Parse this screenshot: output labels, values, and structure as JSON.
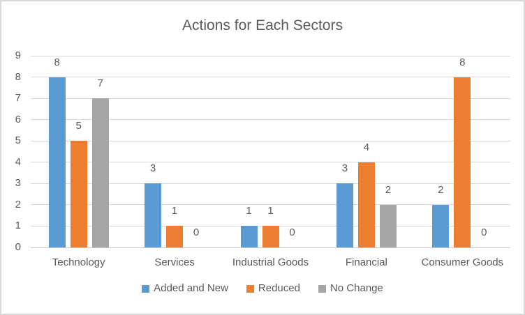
{
  "chart_data": {
    "type": "bar",
    "title": "Actions for Each Sectors",
    "categories": [
      "Technology",
      "Services",
      "Industrial Goods",
      "Financial",
      "Consumer Goods"
    ],
    "series": [
      {
        "name": "Added and New",
        "color": "#5B9BD5",
        "values": [
          8,
          3,
          1,
          3,
          2
        ]
      },
      {
        "name": "Reduced",
        "color": "#ED7D31",
        "values": [
          5,
          1,
          1,
          4,
          8
        ]
      },
      {
        "name": "No Change",
        "color": "#A5A5A5",
        "values": [
          7,
          0,
          0,
          2,
          0
        ]
      }
    ],
    "xlabel": "",
    "ylabel": "",
    "ylim": [
      0,
      9
    ],
    "ytick_step": 1,
    "yticks": [
      "0",
      "1",
      "2",
      "3",
      "4",
      "5",
      "6",
      "7",
      "8",
      "9"
    ],
    "grid": true,
    "data_labels": true,
    "legend_position": "bottom",
    "colors": {
      "text": "#595959",
      "gridline": "#D9D9D9",
      "frame_border": "#D9D9D9",
      "background": "#FFFFFF"
    }
  }
}
